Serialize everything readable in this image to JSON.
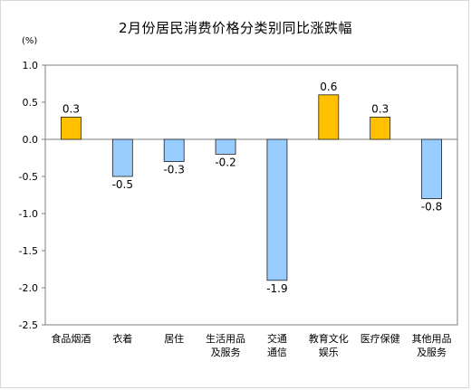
{
  "title": "2月份居民消费价格分类别同比涨跌幅",
  "unit_label": "(%)",
  "colors": {
    "positive": "#FFC000",
    "negative": "#99CCFF",
    "bar_outline": "#1F1F1F",
    "axis": "#7F7F7F"
  },
  "chart_data": {
    "type": "bar",
    "title": "2月份居民消费价格分类别同比涨跌幅",
    "ylabel": "(%)",
    "ylim": [
      -2.5,
      1.0
    ],
    "yticks": [
      "1.0",
      "0.5",
      "0.0",
      "-0.5",
      "-1.0",
      "-1.5",
      "-2.0",
      "-2.5"
    ],
    "ytick_values": [
      1.0,
      0.5,
      0.0,
      -0.5,
      -1.0,
      -1.5,
      -2.0,
      -2.5
    ],
    "grid": false,
    "legend": "none",
    "categories": [
      [
        "食品烟酒"
      ],
      [
        "衣着"
      ],
      [
        "居住"
      ],
      [
        "生活用品",
        "及服务"
      ],
      [
        "交通",
        "通信"
      ],
      [
        "教育文化",
        "娱乐"
      ],
      [
        "医疗保健"
      ],
      [
        "其他用品",
        "及服务"
      ]
    ],
    "values": [
      0.3,
      -0.5,
      -0.3,
      -0.2,
      -1.9,
      0.6,
      0.3,
      -0.8
    ],
    "data_labels": [
      "0.3",
      "-0.5",
      "-0.3",
      "-0.2",
      "-1.9",
      "0.6",
      "0.3",
      "-0.8"
    ]
  }
}
